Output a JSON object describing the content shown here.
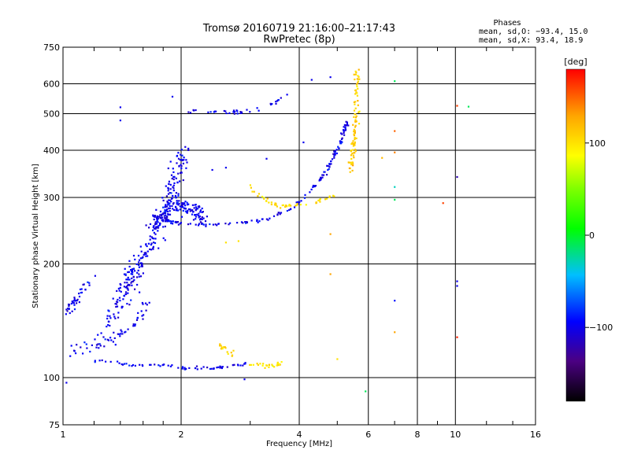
{
  "header": {
    "title_line1": "Tromsø 20160719 21:16:00–21:17:43",
    "title_line2": "RwPretec (8p)"
  },
  "phases": {
    "title": "Phases",
    "line_o": "mean, sd,O: −93.4, 15.0",
    "line_x": "mean, sd,X:  93.4, 18.9"
  },
  "colorbar": {
    "label": "[deg]",
    "min": -180,
    "max": 180,
    "ticks": [
      100,
      0,
      -100
    ],
    "tick_labels": [
      "100",
      "0",
      "−100"
    ]
  },
  "chart_data": {
    "type": "scatter",
    "xlabel": "Frequency [MHz]",
    "ylabel": "Stationary phase Virtual Height [km]",
    "xscale": "log",
    "yscale": "log",
    "xlim": [
      1,
      16
    ],
    "ylim": [
      75,
      750
    ],
    "xticks": [
      1,
      2,
      4,
      6,
      8,
      10,
      16
    ],
    "xtick_labels": [
      "1",
      "2",
      "4",
      "6",
      "8",
      "10",
      "16"
    ],
    "yticks": [
      75,
      100,
      200,
      300,
      400,
      500,
      600,
      750
    ],
    "ytick_labels": [
      "75",
      "100",
      "200",
      "300",
      "400",
      "500",
      "600",
      "750"
    ],
    "grid": true,
    "traces": [
      {
        "f": [
          1.15,
          1.3,
          1.5,
          1.7,
          1.9,
          2.1,
          2.4,
          2.7,
          2.95
        ],
        "h": [
          112,
          110,
          108,
          108,
          107,
          106,
          106,
          107,
          109
        ],
        "phase": -100,
        "n": 70,
        "spread": 0.015
      },
      {
        "f": [
          3.0,
          3.2,
          3.4,
          3.6
        ],
        "h": [
          109,
          108,
          108,
          109
        ],
        "phase": 100,
        "n": 25,
        "spread": 0.02
      },
      {
        "f": [
          1.7,
          1.8,
          1.9,
          2.0,
          2.3,
          2.8,
          3.3,
          3.8,
          4.2,
          4.6
        ],
        "h": [
          270,
          262,
          258,
          256,
          254,
          256,
          262,
          280,
          305,
          345
        ],
        "phase": -100,
        "n": 110,
        "spread": 0.015
      },
      {
        "f": [
          3.0,
          3.2,
          3.4,
          3.6,
          3.8
        ],
        "h": [
          320,
          300,
          290,
          285,
          285
        ],
        "phase": 100,
        "n": 30,
        "spread": 0.02
      },
      {
        "f": [
          3.8,
          4.2,
          4.6,
          5.0
        ],
        "h": [
          285,
          288,
          295,
          305
        ],
        "phase": 100,
        "n": 18,
        "spread": 0.02
      },
      {
        "f": [
          4.5,
          4.8,
          5.1,
          5.3
        ],
        "h": [
          330,
          370,
          420,
          480
        ],
        "phase": -100,
        "n": 60,
        "spread": 0.03
      },
      {
        "f": [
          5.4,
          5.5,
          5.6,
          5.6
        ],
        "h": [
          360,
          420,
          520,
          640
        ],
        "phase": 110,
        "n": 90,
        "spread": 0.05
      },
      {
        "f": [
          1.3,
          1.45,
          1.6,
          1.75,
          1.9,
          2.05
        ],
        "h": [
          140,
          170,
          210,
          250,
          320,
          400
        ],
        "phase": -100,
        "n": 260,
        "spread": 0.12
      },
      {
        "f": [
          1.7,
          1.9,
          2.1,
          2.3
        ],
        "h": [
          250,
          290,
          280,
          265
        ],
        "phase": -100,
        "n": 140,
        "spread": 0.08
      },
      {
        "f": [
          1.02,
          1.1,
          1.2
        ],
        "h": [
          150,
          165,
          185
        ],
        "phase": -100,
        "n": 40,
        "spread": 0.05
      },
      {
        "f": [
          1.05,
          1.2,
          1.35,
          1.5,
          1.65
        ],
        "h": [
          118,
          122,
          128,
          140,
          155
        ],
        "phase": -100,
        "n": 60,
        "spread": 0.07
      },
      {
        "f": [
          2.0,
          2.4,
          2.8,
          3.2
        ],
        "h": [
          510,
          505,
          505,
          515
        ],
        "phase": -100,
        "n": 30,
        "spread": 0.02
      },
      {
        "f": [
          3.4,
          3.6,
          3.9
        ],
        "h": [
          530,
          545,
          570
        ],
        "phase": -100,
        "n": 10,
        "spread": 0.02
      },
      {
        "f": [
          2.5,
          2.6,
          2.7
        ],
        "h": [
          122,
          118,
          115
        ],
        "phase": 110,
        "n": 15,
        "spread": 0.03
      }
    ],
    "scatter_points": [
      {
        "f": 7.0,
        "h": 610,
        "phase": -10
      },
      {
        "f": 7.0,
        "h": 450,
        "phase": 150
      },
      {
        "f": 7.0,
        "h": 395,
        "phase": 140
      },
      {
        "f": 7.0,
        "h": 320,
        "phase": -30
      },
      {
        "f": 7.0,
        "h": 296,
        "phase": -10
      },
      {
        "f": 7.0,
        "h": 160,
        "phase": -90
      },
      {
        "f": 7.0,
        "h": 132,
        "phase": 130
      },
      {
        "f": 10.1,
        "h": 525,
        "phase": 160
      },
      {
        "f": 10.1,
        "h": 340,
        "phase": -120
      },
      {
        "f": 10.1,
        "h": 180,
        "phase": -100
      },
      {
        "f": 10.1,
        "h": 175,
        "phase": -100
      },
      {
        "f": 10.1,
        "h": 128,
        "phase": 170
      },
      {
        "f": 10.8,
        "h": 522,
        "phase": -10
      },
      {
        "f": 9.3,
        "h": 290,
        "phase": 160
      },
      {
        "f": 5.9,
        "h": 92,
        "phase": -10
      },
      {
        "f": 6.5,
        "h": 382,
        "phase": 120
      },
      {
        "f": 4.3,
        "h": 615,
        "phase": -100
      },
      {
        "f": 4.8,
        "h": 625,
        "phase": -100
      },
      {
        "f": 4.8,
        "h": 240,
        "phase": 130
      },
      {
        "f": 4.8,
        "h": 188,
        "phase": 130
      },
      {
        "f": 5.0,
        "h": 112,
        "phase": 100
      },
      {
        "f": 1.02,
        "h": 97,
        "phase": -100
      },
      {
        "f": 2.9,
        "h": 99,
        "phase": -100
      },
      {
        "f": 1.9,
        "h": 555,
        "phase": -100
      },
      {
        "f": 1.4,
        "h": 520,
        "phase": -100
      },
      {
        "f": 1.4,
        "h": 480,
        "phase": -100
      },
      {
        "f": 2.4,
        "h": 355,
        "phase": -100
      },
      {
        "f": 2.6,
        "h": 360,
        "phase": -100
      },
      {
        "f": 2.8,
        "h": 230,
        "phase": 100
      },
      {
        "f": 2.6,
        "h": 228,
        "phase": 100
      },
      {
        "f": 4.1,
        "h": 420,
        "phase": -100
      },
      {
        "f": 3.3,
        "h": 380,
        "phase": -100
      }
    ]
  }
}
